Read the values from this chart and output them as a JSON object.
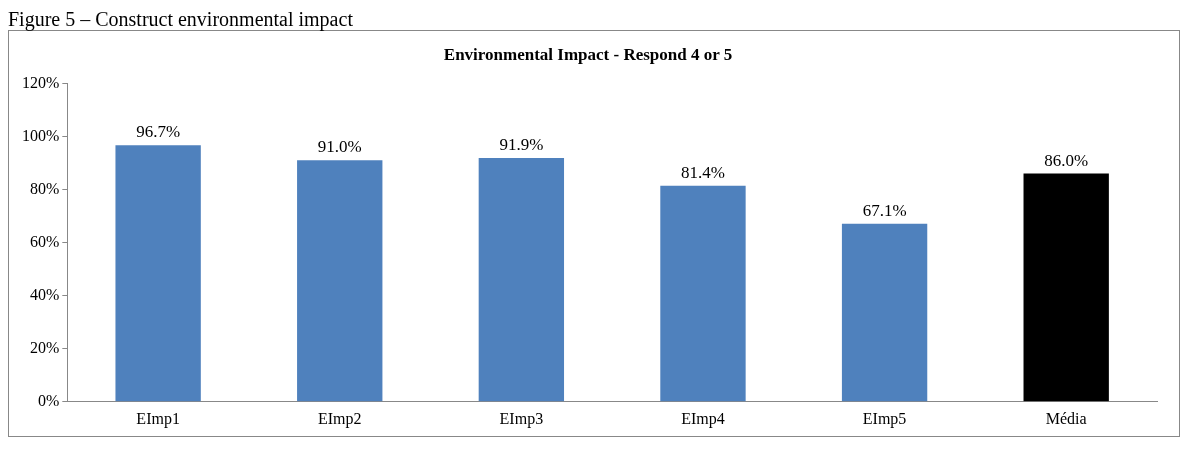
{
  "chart_data": {
    "type": "bar",
    "title": "Environmental Impact - Respond 4 or 5",
    "annotations": [
      "Figure 5 – Construct environmental impact"
    ],
    "categories": [
      "EImp1",
      "EImp2",
      "EImp3",
      "EImp4",
      "EImp5",
      "Média"
    ],
    "values": [
      96.7,
      91.0,
      91.9,
      81.4,
      67.1,
      86.0
    ],
    "colors": [
      "#4f81bd",
      "#4f81bd",
      "#4f81bd",
      "#4f81bd",
      "#4f81bd",
      "#000000"
    ],
    "value_labels": [
      "96.7%",
      "91.0%",
      "91.9%",
      "81.4%",
      "67.1%",
      "86.0%"
    ],
    "ylim": [
      0,
      120
    ],
    "yticks": [
      {
        "value": 0,
        "label": "0%"
      },
      {
        "value": 20,
        "label": "20%"
      },
      {
        "value": 40,
        "label": "40%"
      },
      {
        "value": 60,
        "label": "60%"
      },
      {
        "value": 80,
        "label": "80%"
      },
      {
        "value": 100,
        "label": "100%"
      },
      {
        "value": 120,
        "label": "120%"
      }
    ],
    "grid": false,
    "legend": false
  }
}
